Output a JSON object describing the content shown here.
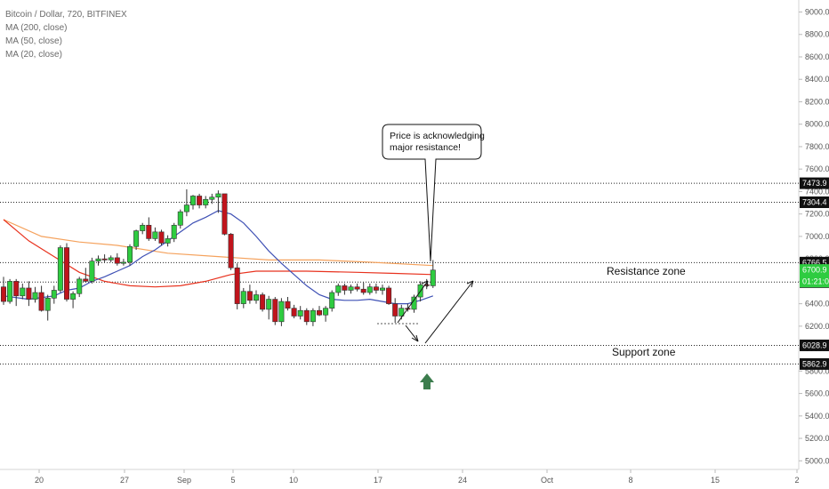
{
  "legend": {
    "symbol": "Bitcoin / Dollar, 720, BITFINEX",
    "ma200": "MA (200, close)",
    "ma50": "MA (50, close)",
    "ma20": "MA (20, close)"
  },
  "callout": {
    "line1": "Price is acknowledging",
    "line2": "major resistance!"
  },
  "zones": {
    "resistance": "Resistance zone",
    "support": "Support zone"
  },
  "colors": {
    "up": "#2ecc40",
    "down": "#c0141c",
    "ma200": "#f5a25d",
    "ma50": "#e8321e",
    "ma20": "#3f51b5",
    "tag": "#111111",
    "up_arrow": "#3c7d4d"
  },
  "chart_data": {
    "type": "candlestick",
    "timeframe": "12h",
    "yaxis": {
      "ticks": [
        "9000.0",
        "8800.0",
        "8600.0",
        "8400.0",
        "8200.0",
        "8000.0",
        "7800.0",
        "7600.0",
        "7400.0",
        "7200.0",
        "7000.0",
        "6800.0",
        "6600.0",
        "6400.0",
        "6200.0",
        "6000.0",
        "5800.0",
        "5600.0",
        "5400.0",
        "5200.0",
        "5000.0"
      ],
      "ylim": [
        4900,
        9100
      ]
    },
    "xaxis": {
      "ticks": [
        "20",
        "27",
        "Sep",
        "5",
        "10",
        "17",
        "24",
        "Oct",
        "8",
        "15",
        "2"
      ]
    },
    "horizontal_levels": [
      {
        "price": 7473.9,
        "label": "7473.9"
      },
      {
        "price": 7304.4,
        "label": "7304.4"
      },
      {
        "price": 6766.5,
        "label": "6766.5"
      },
      {
        "price": 6592.7,
        "label": "6592.7"
      },
      {
        "price": 6028.9,
        "label": "6028.9"
      },
      {
        "price": 5862.9,
        "label": "5862.9"
      }
    ],
    "price_tag": {
      "price": 6700.9,
      "label": "6700.9",
      "countdown": "01:21:03"
    },
    "candles": [
      [
        6550,
        6640,
        6390,
        6420
      ],
      [
        6420,
        6620,
        6400,
        6600
      ],
      [
        6600,
        6620,
        6380,
        6470
      ],
      [
        6470,
        6580,
        6440,
        6540
      ],
      [
        6540,
        6600,
        6380,
        6440
      ],
      [
        6440,
        6550,
        6410,
        6500
      ],
      [
        6500,
        6560,
        6330,
        6340
      ],
      [
        6340,
        6480,
        6250,
        6450
      ],
      [
        6450,
        6560,
        6400,
        6520
      ],
      [
        6520,
        6920,
        6500,
        6900
      ],
      [
        6900,
        6940,
        6420,
        6440
      ],
      [
        6440,
        6510,
        6360,
        6490
      ],
      [
        6490,
        6640,
        6460,
        6620
      ],
      [
        6620,
        6720,
        6590,
        6600
      ],
      [
        6600,
        6810,
        6580,
        6780
      ],
      [
        6780,
        6830,
        6740,
        6800
      ],
      [
        6800,
        6840,
        6770,
        6790
      ],
      [
        6790,
        6830,
        6770,
        6810
      ],
      [
        6810,
        6850,
        6740,
        6760
      ],
      [
        6760,
        6800,
        6740,
        6770
      ],
      [
        6770,
        6930,
        6740,
        6910
      ],
      [
        6910,
        7060,
        6880,
        7050
      ],
      [
        7050,
        7120,
        7020,
        7100
      ],
      [
        7100,
        7170,
        6960,
        6980
      ],
      [
        6980,
        7080,
        6960,
        7040
      ],
      [
        7040,
        7060,
        6920,
        6940
      ],
      [
        6940,
        7010,
        6910,
        6980
      ],
      [
        6980,
        7120,
        6950,
        7100
      ],
      [
        7100,
        7240,
        7070,
        7220
      ],
      [
        7220,
        7420,
        7180,
        7280
      ],
      [
        7280,
        7370,
        7240,
        7360
      ],
      [
        7360,
        7380,
        7250,
        7280
      ],
      [
        7280,
        7360,
        7250,
        7330
      ],
      [
        7330,
        7380,
        7290,
        7350
      ],
      [
        7350,
        7410,
        7210,
        7380
      ],
      [
        7380,
        7380,
        7010,
        7020
      ],
      [
        7020,
        7030,
        6700,
        6720
      ],
      [
        6720,
        6760,
        6350,
        6400
      ],
      [
        6400,
        6540,
        6360,
        6510
      ],
      [
        6510,
        6570,
        6400,
        6430
      ],
      [
        6430,
        6520,
        6400,
        6480
      ],
      [
        6480,
        6500,
        6330,
        6350
      ],
      [
        6350,
        6470,
        6260,
        6440
      ],
      [
        6440,
        6460,
        6210,
        6240
      ],
      [
        6240,
        6450,
        6200,
        6420
      ],
      [
        6420,
        6460,
        6340,
        6360
      ],
      [
        6360,
        6390,
        6270,
        6290
      ],
      [
        6290,
        6380,
        6260,
        6340
      ],
      [
        6340,
        6360,
        6210,
        6240
      ],
      [
        6240,
        6360,
        6200,
        6340
      ],
      [
        6340,
        6380,
        6290,
        6300
      ],
      [
        6300,
        6380,
        6240,
        6360
      ],
      [
        6360,
        6520,
        6330,
        6500
      ],
      [
        6500,
        6580,
        6470,
        6560
      ],
      [
        6560,
        6580,
        6480,
        6520
      ],
      [
        6520,
        6570,
        6490,
        6550
      ],
      [
        6550,
        6580,
        6510,
        6530
      ],
      [
        6530,
        6590,
        6480,
        6500
      ],
      [
        6500,
        6580,
        6480,
        6550
      ],
      [
        6550,
        6580,
        6490,
        6520
      ],
      [
        6520,
        6570,
        6480,
        6540
      ],
      [
        6540,
        6560,
        6390,
        6400
      ],
      [
        6400,
        6450,
        6230,
        6290
      ],
      [
        6290,
        6390,
        6260,
        6360
      ],
      [
        6360,
        6400,
        6330,
        6350
      ],
      [
        6350,
        6480,
        6320,
        6460
      ],
      [
        6460,
        6600,
        6420,
        6570
      ],
      [
        6570,
        6620,
        6530,
        6560
      ],
      [
        6560,
        6790,
        6540,
        6700
      ]
    ],
    "series": [
      {
        "name": "MA (200, close)",
        "values": [
          [
            0,
            7150
          ],
          [
            6,
            7000
          ],
          [
            12,
            6950
          ],
          [
            18,
            6920
          ],
          [
            26,
            6850
          ],
          [
            34,
            6820
          ],
          [
            42,
            6790
          ],
          [
            50,
            6790
          ],
          [
            58,
            6770
          ],
          [
            68,
            6740
          ]
        ]
      },
      {
        "name": "MA (50, close)",
        "values": [
          [
            0,
            7150
          ],
          [
            4,
            6960
          ],
          [
            8,
            6820
          ],
          [
            12,
            6680
          ],
          [
            16,
            6600
          ],
          [
            20,
            6560
          ],
          [
            24,
            6550
          ],
          [
            28,
            6560
          ],
          [
            32,
            6600
          ],
          [
            36,
            6660
          ],
          [
            40,
            6690
          ],
          [
            48,
            6690
          ],
          [
            56,
            6680
          ],
          [
            62,
            6670
          ],
          [
            68,
            6660
          ]
        ]
      },
      {
        "name": "MA (20, close)",
        "values": [
          [
            0,
            6470
          ],
          [
            4,
            6440
          ],
          [
            8,
            6470
          ],
          [
            10,
            6520
          ],
          [
            12,
            6540
          ],
          [
            14,
            6600
          ],
          [
            16,
            6640
          ],
          [
            18,
            6690
          ],
          [
            20,
            6740
          ],
          [
            22,
            6820
          ],
          [
            24,
            6880
          ],
          [
            26,
            6960
          ],
          [
            28,
            7040
          ],
          [
            30,
            7120
          ],
          [
            32,
            7170
          ],
          [
            34,
            7230
          ],
          [
            36,
            7200
          ],
          [
            38,
            7120
          ],
          [
            40,
            7000
          ],
          [
            42,
            6870
          ],
          [
            44,
            6760
          ],
          [
            46,
            6660
          ],
          [
            48,
            6560
          ],
          [
            50,
            6480
          ],
          [
            52,
            6440
          ],
          [
            54,
            6430
          ],
          [
            56,
            6430
          ],
          [
            58,
            6440
          ],
          [
            60,
            6420
          ],
          [
            62,
            6400
          ],
          [
            64,
            6400
          ],
          [
            66,
            6430
          ],
          [
            68,
            6470
          ]
        ]
      }
    ]
  }
}
